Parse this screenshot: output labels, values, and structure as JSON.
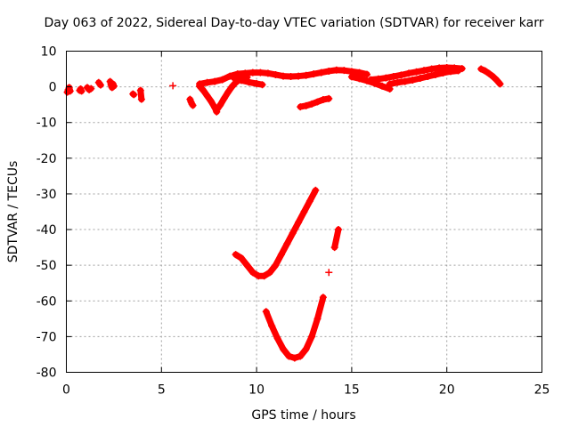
{
  "chart_data": {
    "type": "scatter",
    "title": "Day 063 of 2022, Sidereal Day-to-day VTEC variation (SDTVAR) for receiver karr",
    "xlabel": "GPS time / hours",
    "ylabel": "SDTVAR / TECUs",
    "xlim": [
      0,
      25
    ],
    "ylim": [
      -80,
      10
    ],
    "xticks": [
      0,
      5,
      10,
      15,
      20,
      25
    ],
    "yticks": [
      10,
      0,
      -10,
      -20,
      -30,
      -40,
      -50,
      -60,
      -70,
      -80
    ],
    "xtick_labels": [
      "0",
      "5",
      "10",
      "15",
      "20",
      "25"
    ],
    "ytick_labels": [
      "10",
      "0",
      "-10",
      "-20",
      "-30",
      "-40",
      "-50",
      "-60",
      "-70",
      "-80"
    ],
    "grid": true,
    "marker": "+",
    "color": "#ff0000",
    "series": [
      {
        "name": "early-a",
        "points": [
          [
            0.05,
            -1.5
          ],
          [
            0.1,
            -0.8
          ],
          [
            0.15,
            -0.2
          ],
          [
            0.2,
            -1.2
          ]
        ]
      },
      {
        "name": "early-b",
        "points": [
          [
            0.7,
            -1.0
          ],
          [
            0.75,
            -0.6
          ],
          [
            0.8,
            -1.2
          ]
        ]
      },
      {
        "name": "early-c",
        "points": [
          [
            1.1,
            -0.2
          ],
          [
            1.2,
            -0.8
          ],
          [
            1.3,
            -0.5
          ]
        ]
      },
      {
        "name": "early-d",
        "points": [
          [
            1.7,
            1.2
          ],
          [
            1.8,
            0.5
          ]
        ]
      },
      {
        "name": "early-e",
        "points": [
          [
            2.3,
            1.5
          ],
          [
            2.35,
            0.5
          ],
          [
            2.4,
            -0.2
          ],
          [
            2.45,
            0.8
          ],
          [
            2.5,
            0.2
          ]
        ]
      },
      {
        "name": "early-f",
        "points": [
          [
            3.5,
            -2.0
          ],
          [
            3.55,
            -2.2
          ]
        ]
      },
      {
        "name": "early-g",
        "points": [
          [
            3.9,
            -1.0
          ],
          [
            3.95,
            -3.5
          ]
        ]
      },
      {
        "name": "early-h",
        "points": [
          [
            5.6,
            0.3
          ]
        ]
      },
      {
        "name": "early-i",
        "points": [
          [
            6.5,
            -3.5
          ],
          [
            6.55,
            -4.2
          ],
          [
            6.6,
            -4.8
          ],
          [
            6.65,
            -5.2
          ]
        ]
      },
      {
        "name": "drop-1",
        "points": [
          [
            7.0,
            0.2
          ],
          [
            7.2,
            -1.0
          ],
          [
            7.4,
            -2.5
          ],
          [
            7.6,
            -4.0
          ],
          [
            7.8,
            -5.8
          ],
          [
            7.9,
            -7.0
          ]
        ]
      },
      {
        "name": "recover-1",
        "points": [
          [
            7.9,
            -6.5
          ],
          [
            8.1,
            -5.0
          ],
          [
            8.3,
            -3.2
          ],
          [
            8.5,
            -1.5
          ],
          [
            8.7,
            0.0
          ],
          [
            8.9,
            1.2
          ],
          [
            9.1,
            2.0
          ],
          [
            9.3,
            2.5
          ],
          [
            9.5,
            2.7
          ]
        ]
      },
      {
        "name": "band-1",
        "points": [
          [
            7.0,
            0.8
          ],
          [
            7.4,
            1.2
          ],
          [
            7.8,
            1.5
          ],
          [
            8.2,
            2.0
          ],
          [
            8.6,
            3.0
          ],
          [
            9.0,
            3.6
          ],
          [
            9.4,
            3.8
          ],
          [
            9.8,
            4.0
          ],
          [
            10.2,
            4.0
          ],
          [
            10.6,
            3.8
          ],
          [
            11.0,
            3.4
          ],
          [
            11.4,
            3.0
          ],
          [
            11.8,
            2.9
          ],
          [
            12.2,
            3.0
          ],
          [
            12.6,
            3.2
          ],
          [
            13.0,
            3.6
          ],
          [
            13.4,
            4.0
          ],
          [
            13.8,
            4.4
          ],
          [
            14.2,
            4.7
          ],
          [
            14.6,
            4.6
          ],
          [
            15.0,
            4.3
          ],
          [
            15.4,
            4.0
          ],
          [
            15.8,
            3.5
          ]
        ]
      },
      {
        "name": "band-2",
        "points": [
          [
            8.8,
            2.5
          ],
          [
            9.2,
            1.8
          ],
          [
            9.6,
            1.3
          ],
          [
            10.0,
            0.9
          ],
          [
            10.3,
            0.6
          ]
        ]
      },
      {
        "name": "band-3",
        "points": [
          [
            15.0,
            2.8
          ],
          [
            15.4,
            2.3
          ],
          [
            15.8,
            1.7
          ],
          [
            16.2,
            1.0
          ],
          [
            16.6,
            0.2
          ],
          [
            17.0,
            -0.6
          ]
        ]
      },
      {
        "name": "band-4",
        "points": [
          [
            16.0,
            2.0
          ],
          [
            16.4,
            2.2
          ],
          [
            16.8,
            2.5
          ],
          [
            17.2,
            2.9
          ],
          [
            17.6,
            3.3
          ],
          [
            18.0,
            3.8
          ],
          [
            18.4,
            4.2
          ],
          [
            18.8,
            4.6
          ],
          [
            19.2,
            5.0
          ],
          [
            19.6,
            5.3
          ],
          [
            20.0,
            5.4
          ],
          [
            20.4,
            5.3
          ],
          [
            20.8,
            5.1
          ]
        ]
      },
      {
        "name": "band-5",
        "points": [
          [
            17.0,
            0.8
          ],
          [
            17.4,
            1.2
          ],
          [
            17.8,
            1.5
          ],
          [
            18.2,
            1.9
          ],
          [
            18.6,
            2.4
          ],
          [
            19.0,
            2.9
          ],
          [
            19.4,
            3.4
          ],
          [
            19.8,
            3.9
          ],
          [
            20.2,
            4.3
          ],
          [
            20.6,
            4.5
          ]
        ]
      },
      {
        "name": "dip-12",
        "points": [
          [
            12.3,
            -5.6
          ],
          [
            12.6,
            -5.3
          ],
          [
            12.9,
            -4.8
          ],
          [
            13.2,
            -4.2
          ],
          [
            13.5,
            -3.6
          ],
          [
            13.8,
            -3.3
          ]
        ]
      },
      {
        "name": "late",
        "points": [
          [
            21.8,
            5.0
          ],
          [
            22.0,
            4.5
          ],
          [
            22.2,
            3.8
          ],
          [
            22.4,
            3.0
          ],
          [
            22.6,
            2.0
          ],
          [
            22.8,
            0.8
          ]
        ]
      },
      {
        "name": "curve-a",
        "points": [
          [
            8.9,
            -47.0
          ],
          [
            9.2,
            -48.0
          ],
          [
            9.5,
            -50.0
          ],
          [
            9.8,
            -52.0
          ],
          [
            10.1,
            -53.0
          ],
          [
            10.4,
            -53.0
          ],
          [
            10.7,
            -52.0
          ],
          [
            11.0,
            -50.0
          ],
          [
            11.3,
            -47.0
          ],
          [
            11.6,
            -44.0
          ],
          [
            11.9,
            -41.0
          ],
          [
            12.2,
            -38.0
          ],
          [
            12.5,
            -35.0
          ],
          [
            12.8,
            -32.0
          ],
          [
            13.1,
            -29.0
          ]
        ]
      },
      {
        "name": "curve-b",
        "points": [
          [
            10.5,
            -63.0
          ],
          [
            10.8,
            -67.0
          ],
          [
            11.1,
            -70.5
          ],
          [
            11.4,
            -73.5
          ],
          [
            11.7,
            -75.5
          ],
          [
            12.0,
            -76.0
          ],
          [
            12.3,
            -75.5
          ],
          [
            12.6,
            -73.5
          ],
          [
            12.9,
            -70.0
          ],
          [
            13.2,
            -65.0
          ],
          [
            13.5,
            -59.0
          ],
          [
            13.8,
            -52.0
          ],
          [
            14.1,
            -45.0
          ],
          [
            14.3,
            -40.0
          ]
        ]
      }
    ]
  }
}
